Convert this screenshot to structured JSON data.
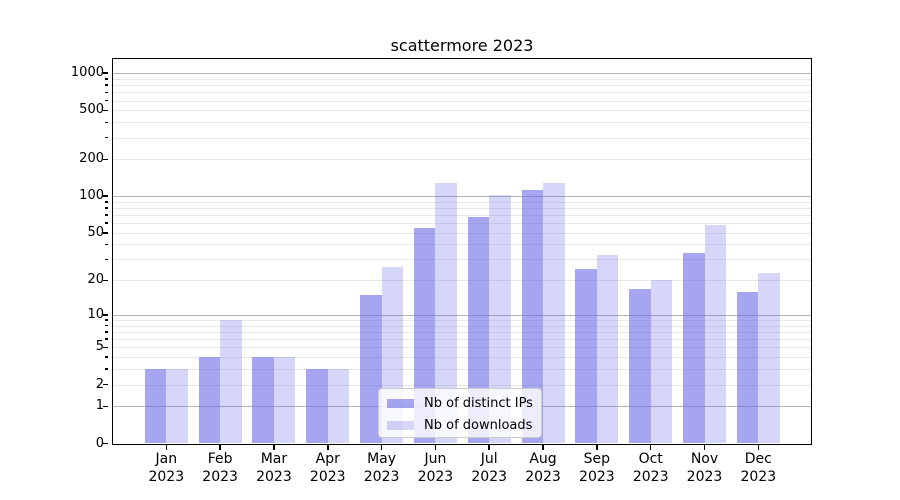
{
  "figure": {
    "background": "#ffffff"
  },
  "chart_data": {
    "type": "bar",
    "title": "scattermore 2023",
    "categories": [
      "Jan 2023",
      "Feb 2023",
      "Mar 2023",
      "Apr 2023",
      "May 2023",
      "Jun 2023",
      "Jul 2023",
      "Aug 2023",
      "Sep 2023",
      "Oct 2023",
      "Nov 2023",
      "Dec 2023"
    ],
    "x_tick_top": [
      "Jan",
      "Feb",
      "Mar",
      "Apr",
      "May",
      "Jun",
      "Jul",
      "Aug",
      "Sep",
      "Oct",
      "Nov",
      "Dec"
    ],
    "x_tick_bottom": "2023",
    "series": [
      {
        "name": "Nb of distinct IPs",
        "base_color": "#6b6be6",
        "alpha": 0.6,
        "fill_on_white": "#a6a6f0",
        "values": [
          3,
          4,
          4,
          3,
          15,
          55,
          67,
          112,
          25,
          17,
          34,
          16
        ]
      },
      {
        "name": "Nb of downloads",
        "base_color": "#6b6be6",
        "alpha": 0.28,
        "fill_on_white": "#d6d6f7",
        "values": [
          3,
          9,
          4,
          3,
          26,
          128,
          102,
          129,
          33,
          20,
          58,
          23
        ]
      }
    ],
    "yscale": "log1p",
    "ylim": [
      0,
      1300
    ],
    "y_tick_values": [
      0,
      1,
      2,
      5,
      10,
      20,
      50,
      100,
      200,
      500,
      1000
    ],
    "y_tick_labels": [
      "0",
      "1",
      "2",
      "5",
      "10",
      "20",
      "50",
      "100",
      "200",
      "500",
      "1000"
    ],
    "y_major_grid": [
      1,
      10,
      100,
      1000
    ],
    "y_minor_grid": [
      2,
      3,
      4,
      5,
      6,
      7,
      8,
      9,
      20,
      30,
      40,
      50,
      60,
      70,
      80,
      90,
      200,
      300,
      400,
      500,
      600,
      700,
      800,
      900
    ],
    "grid": "horizontal",
    "legend": {
      "position": "lower-center",
      "entries": [
        "Nb of distinct IPs",
        "Nb of downloads"
      ]
    },
    "colors": {
      "grid_major": "#b3b3b3",
      "grid_minor": "#e8e8e8",
      "spine": "#000000",
      "text": "#000000",
      "legend_border": "#cccccc",
      "legend_bg": "#ffffff"
    }
  }
}
